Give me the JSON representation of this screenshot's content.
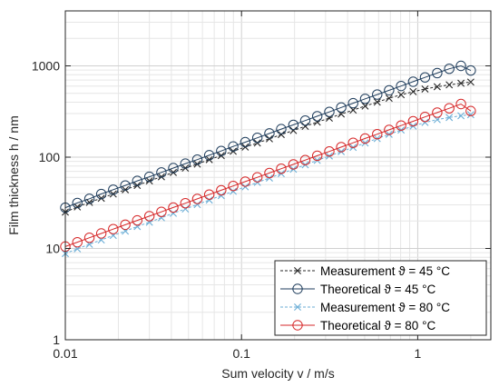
{
  "chart_data": {
    "type": "line",
    "xscale": "log",
    "yscale": "log",
    "xlim": [
      0.01,
      2.6
    ],
    "ylim": [
      1,
      4000
    ],
    "xlabel": "Sum velocity  v / m/s",
    "ylabel": "Film thickness  h / nm",
    "xticks": [
      0.01,
      0.1,
      1
    ],
    "xtick_labels": [
      "0.01",
      "0.1",
      "1"
    ],
    "yticks": [
      1,
      10,
      100,
      1000
    ],
    "ytick_labels": [
      "1",
      "10",
      "100",
      "1000"
    ],
    "grid": true,
    "legend_position": "bottom-right",
    "x": [
      0.01,
      0.0117,
      0.0137,
      0.016,
      0.0187,
      0.0219,
      0.0256,
      0.03,
      0.0351,
      0.041,
      0.048,
      0.0561,
      0.0656,
      0.0767,
      0.0897,
      0.105,
      0.123,
      0.144,
      0.168,
      0.197,
      0.23,
      0.269,
      0.315,
      0.368,
      0.43,
      0.503,
      0.589,
      0.688,
      0.805,
      0.942,
      1.1,
      1.29,
      1.51,
      1.76,
      2.0
    ],
    "series": [
      {
        "name": "Measurement  ϑ = 45 °C",
        "color": "#262626",
        "line_style": "dashed",
        "marker": "x",
        "values": [
          25,
          28.5,
          32,
          35.5,
          39.5,
          44,
          49,
          55,
          61,
          68,
          76,
          84,
          94,
          104,
          116,
          129,
          143,
          159,
          177,
          196,
          218,
          242,
          268,
          297,
          328,
          363,
          401,
          442,
          483,
          522,
          558,
          591,
          620,
          645,
          665
        ]
      },
      {
        "name": "Theoretical  ϑ = 45 °C",
        "color": "#1f3d5c",
        "line_style": "solid",
        "marker": "o",
        "values": [
          28,
          31.5,
          35,
          39.5,
          44,
          49,
          55,
          61,
          68,
          76,
          85,
          94,
          105,
          117,
          131,
          146,
          163,
          182,
          203,
          226,
          252,
          281,
          313,
          350,
          390,
          435,
          485,
          540,
          602,
          671,
          748,
          834,
          930,
          1000,
          890
        ]
      },
      {
        "name": "Measurement  ϑ = 80 °C",
        "color": "#6baed6",
        "line_style": "dashed",
        "marker": "x",
        "values": [
          8.8,
          9.9,
          11.1,
          12.4,
          13.9,
          15.5,
          17.4,
          19.4,
          21.7,
          24.3,
          27.1,
          30.3,
          33.9,
          37.9,
          42.3,
          47.3,
          52.9,
          59.1,
          66.0,
          73.8,
          82.5,
          92.2,
          103,
          115,
          128,
          143,
          160,
          178,
          198,
          219,
          240,
          258,
          272,
          284,
          292
        ]
      },
      {
        "name": "Theoretical  ϑ = 80 °C",
        "color": "#d62728",
        "line_style": "solid",
        "marker": "o",
        "values": [
          10.5,
          11.7,
          13.1,
          14.6,
          16.3,
          18.2,
          20.3,
          22.6,
          25.2,
          28.1,
          31.3,
          34.9,
          38.9,
          43.4,
          48.4,
          54.0,
          60.2,
          67.1,
          74.8,
          83.4,
          93.0,
          103.7,
          115.6,
          128.9,
          143.7,
          160.2,
          178.6,
          199.1,
          222,
          247.5,
          276,
          307.7,
          343,
          382,
          320
        ]
      }
    ]
  }
}
